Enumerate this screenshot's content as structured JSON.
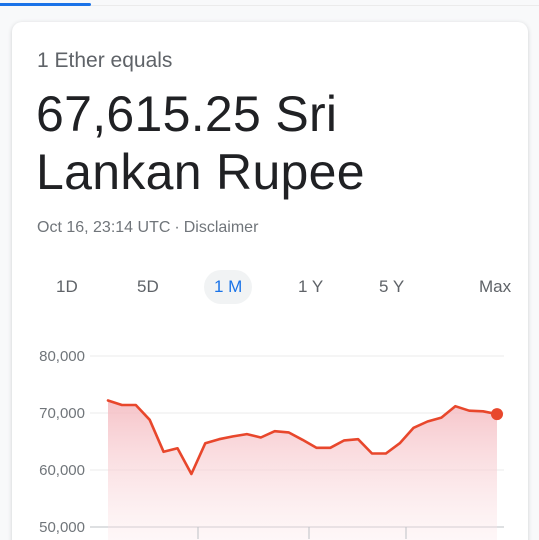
{
  "header": {
    "subtitle": "1 Ether equals"
  },
  "price": {
    "value_line": "67,615.25 Sri Lankan Rupee"
  },
  "meta": {
    "timestamp": "Oct 16, 23:14 UTC",
    "separator": "·",
    "disclaimer": "Disclaimer"
  },
  "ranges": {
    "items": [
      "1D",
      "5D",
      "1 M",
      "1 Y",
      "5 Y",
      "Max"
    ],
    "selected": "1 M"
  },
  "colors": {
    "accent": "#1a73e8",
    "line": "#e8472c",
    "fill": "#f6c9cd"
  },
  "chart_data": {
    "type": "area",
    "y_ticks": [
      "80,000",
      "70,000",
      "60,000",
      "50,000"
    ],
    "y_tick_values": [
      80000,
      70000,
      60000,
      50000
    ],
    "ylim": [
      50000,
      80000
    ],
    "grid": true,
    "series": [
      {
        "values": [
          72200,
          71400,
          71400,
          68800,
          63200,
          63800,
          59300,
          64700,
          65400,
          65900,
          66300,
          65700,
          66800,
          66600,
          65300,
          63900,
          63900,
          65200,
          65400,
          62900,
          62900,
          64700,
          67400,
          68500,
          69200,
          71200,
          70400,
          70300,
          69800
        ]
      }
    ]
  }
}
